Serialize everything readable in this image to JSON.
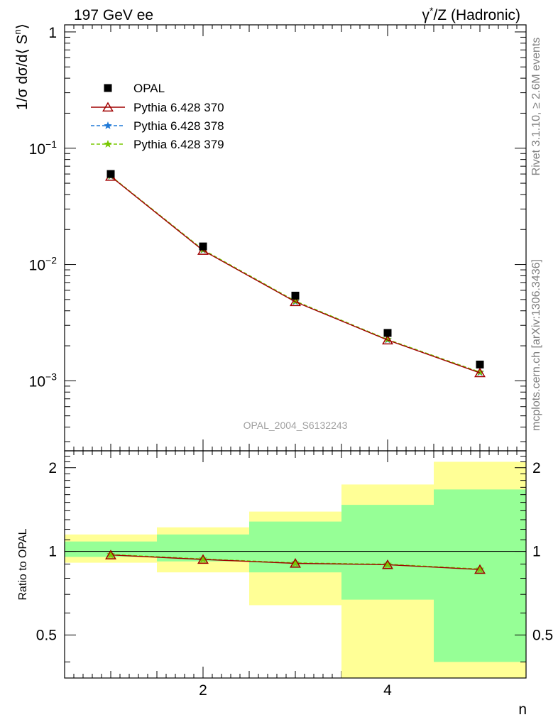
{
  "header": {
    "left_title": "197 GeV ee",
    "right_title_pre": "γ",
    "right_title_sup": "*",
    "right_title_post": "/Z (Hadronic)"
  },
  "side_labels": {
    "rivet": "Rivet 3.1.10, ≥ 2.6M events",
    "mcplots": "mcplots.cern.ch [arXiv:1306.3436]"
  },
  "watermark": "OPAL_2004_S6132243",
  "colors": {
    "data": "#000000",
    "pythia_370": "#a00000",
    "pythia_378": "#1e78d7",
    "pythia_379": "#78c800",
    "band_outer": "#ffff96",
    "band_inner": "#96ff96"
  },
  "chart_data": [
    {
      "type": "scatter",
      "panel": "main",
      "ylabel_pre": "1/σ dσ/d⟨ S",
      "ylabel_sup": "n",
      "ylabel_post": "⟩",
      "yscale": "log",
      "xlim": [
        0.5,
        5.5
      ],
      "ylim": [
        0.00025,
        1.15
      ],
      "yticks": [
        {
          "value": 1,
          "base": "1",
          "exp": ""
        },
        {
          "value": 0.1,
          "base": "10",
          "exp": "−1"
        },
        {
          "value": 0.01,
          "base": "10",
          "exp": "−2"
        },
        {
          "value": 0.001,
          "base": "10",
          "exp": "−3"
        }
      ],
      "legend_position": "top-left",
      "x": [
        1,
        2,
        3,
        4,
        5
      ],
      "series": [
        {
          "name": "OPAL",
          "marker": "square",
          "values": [
            0.06,
            0.0143,
            0.0054,
            0.00258,
            0.00138
          ]
        },
        {
          "name": "Pythia 6.428 370",
          "marker": "triangle",
          "values": [
            0.0572,
            0.0132,
            0.00478,
            0.00224,
            0.00117
          ]
        },
        {
          "name": "Pythia 6.428 378",
          "marker": "star",
          "values": [
            0.0575,
            0.0133,
            0.0048,
            0.00225,
            0.00118
          ]
        },
        {
          "name": "Pythia 6.428 379",
          "marker": "star",
          "values": [
            0.0578,
            0.0134,
            0.00485,
            0.00227,
            0.00119
          ]
        }
      ]
    },
    {
      "type": "line",
      "panel": "ratio",
      "ylabel": "Ratio to OPAL",
      "xlabel": "n",
      "xlim": [
        0.5,
        5.5
      ],
      "ylim": [
        0.35,
        2.3
      ],
      "xticks": [
        2,
        4
      ],
      "yticks": [
        0.5,
        1,
        2
      ],
      "reference_line": 1,
      "bins": [
        [
          0.5,
          1.5
        ],
        [
          1.5,
          2.5
        ],
        [
          2.5,
          3.5
        ],
        [
          3.5,
          4.5
        ],
        [
          4.5,
          5.5
        ]
      ],
      "band_outer": [
        [
          0.91,
          1.15
        ],
        [
          0.84,
          1.22
        ],
        [
          0.64,
          1.39
        ],
        [
          0.35,
          1.74
        ],
        [
          0.35,
          2.1
        ]
      ],
      "band_inner": [
        [
          0.955,
          1.085
        ],
        [
          0.92,
          1.15
        ],
        [
          0.84,
          1.28
        ],
        [
          0.67,
          1.47
        ],
        [
          0.4,
          1.67
        ]
      ],
      "x": [
        1,
        2,
        3,
        4,
        5
      ],
      "series": [
        {
          "name": "Pythia 6.428 370",
          "values": [
            0.97,
            0.935,
            0.905,
            0.895,
            0.86
          ]
        },
        {
          "name": "Pythia 6.428 378",
          "values": [
            0.972,
            0.937,
            0.907,
            0.897,
            0.862
          ]
        },
        {
          "name": "Pythia 6.428 379",
          "values": [
            0.974,
            0.939,
            0.909,
            0.899,
            0.864
          ]
        }
      ]
    }
  ]
}
